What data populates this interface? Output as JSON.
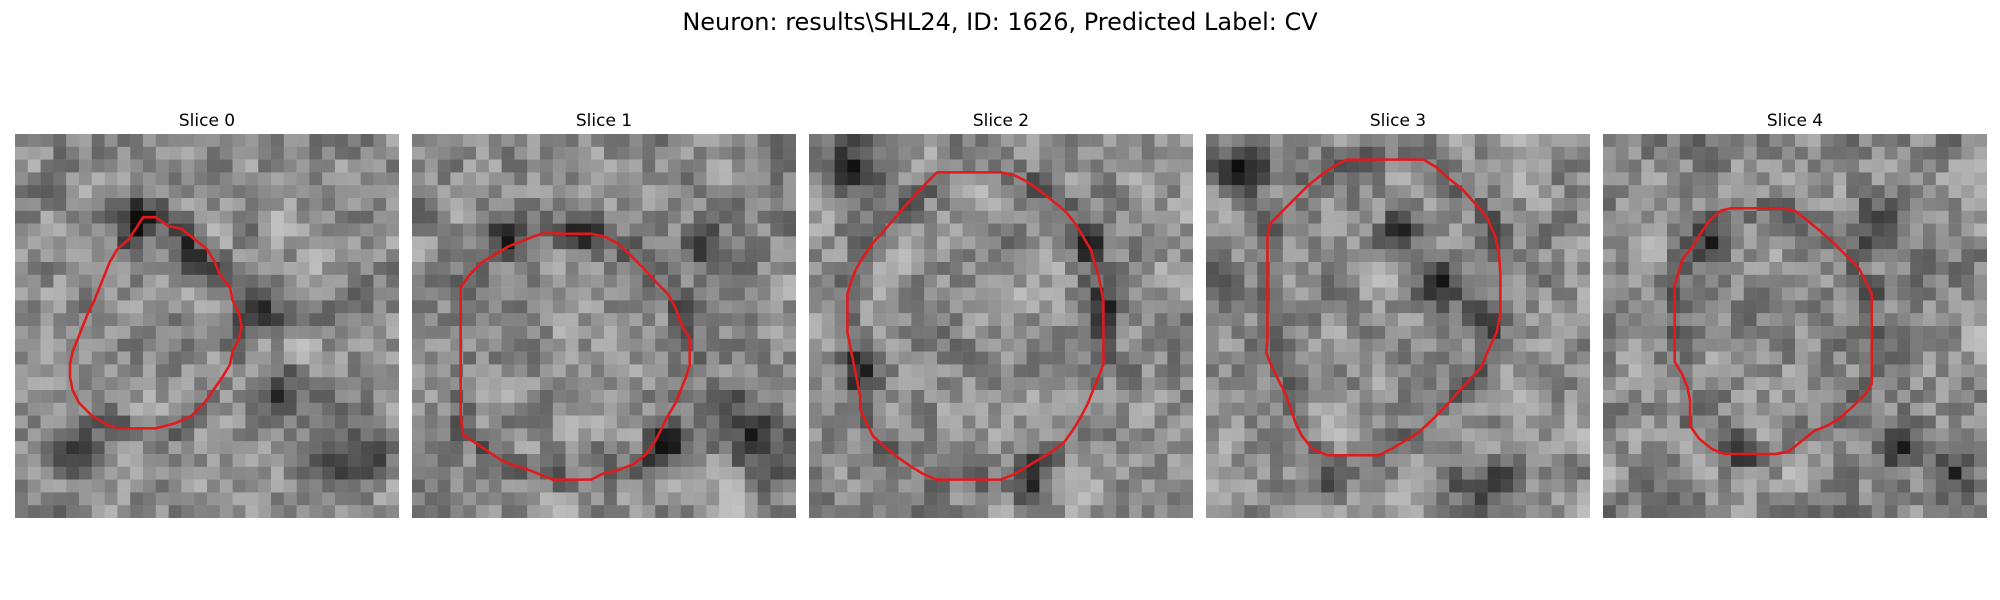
{
  "figure": {
    "title": "Neuron: results\\SHL24, ID: 1626, Predicted Label: CV"
  },
  "outline_color": "#e31a1c",
  "panels": [
    {
      "title": "Slice 0",
      "seed": 11,
      "contour": [
        [
          10,
          6.5
        ],
        [
          11,
          6.5
        ],
        [
          12,
          7.2
        ],
        [
          13,
          7.4
        ],
        [
          14,
          8.2
        ],
        [
          15,
          9
        ],
        [
          15.6,
          10
        ],
        [
          16,
          11
        ],
        [
          16.8,
          12
        ],
        [
          17,
          13
        ],
        [
          17.5,
          14
        ],
        [
          17.7,
          15
        ],
        [
          17.5,
          16
        ],
        [
          17,
          17
        ],
        [
          16.8,
          18
        ],
        [
          16.2,
          19
        ],
        [
          15.5,
          20
        ],
        [
          14.8,
          21
        ],
        [
          13.8,
          22
        ],
        [
          12.5,
          22.6
        ],
        [
          11,
          23
        ],
        [
          10,
          23
        ],
        [
          9,
          23
        ],
        [
          8,
          23
        ],
        [
          7,
          22.6
        ],
        [
          6,
          22
        ],
        [
          5,
          21
        ],
        [
          4.5,
          20
        ],
        [
          4.3,
          19
        ],
        [
          4.3,
          18
        ],
        [
          4.5,
          17
        ],
        [
          4.9,
          16
        ],
        [
          5.3,
          15
        ],
        [
          5.7,
          14
        ],
        [
          6.2,
          13
        ],
        [
          6.6,
          12
        ],
        [
          7,
          11
        ],
        [
          7.4,
          10
        ],
        [
          8,
          9
        ],
        [
          8.9,
          8.2
        ],
        [
          9.5,
          7.3
        ]
      ],
      "dark": [
        [
          9,
          6,
          3
        ],
        [
          13,
          9,
          2.5
        ],
        [
          19,
          13,
          3
        ],
        [
          20,
          20,
          3.5
        ],
        [
          26,
          24,
          4
        ],
        [
          4,
          24,
          3
        ]
      ]
    },
    {
      "title": "Slice 1",
      "seed": 23,
      "contour": [
        [
          12,
          7.8
        ],
        [
          13,
          7.8
        ],
        [
          14,
          7.8
        ],
        [
          15,
          8
        ],
        [
          16,
          8.5
        ],
        [
          17,
          9.4
        ],
        [
          18,
          10.4
        ],
        [
          19,
          11.5
        ],
        [
          20,
          12.5
        ],
        [
          20.6,
          13.6
        ],
        [
          21,
          14.8
        ],
        [
          21.7,
          16
        ],
        [
          21.7,
          17
        ],
        [
          21.7,
          18
        ],
        [
          21.4,
          19
        ],
        [
          21,
          20
        ],
        [
          20.6,
          21
        ],
        [
          20,
          22
        ],
        [
          19.5,
          23
        ],
        [
          19,
          24
        ],
        [
          18.3,
          25
        ],
        [
          17.3,
          25.8
        ],
        [
          16,
          26.3
        ],
        [
          15,
          26.5
        ],
        [
          14,
          27
        ],
        [
          13,
          27
        ],
        [
          12,
          27
        ],
        [
          11,
          27
        ],
        [
          10,
          26.6
        ],
        [
          9,
          26.2
        ],
        [
          8,
          25.9
        ],
        [
          7,
          25.5
        ],
        [
          5.5,
          24.5
        ],
        [
          4,
          23.5
        ],
        [
          3.8,
          22
        ],
        [
          3.8,
          21
        ],
        [
          3.8,
          20
        ],
        [
          3.8,
          19
        ],
        [
          3.8,
          18
        ],
        [
          3.8,
          17
        ],
        [
          3.8,
          16
        ],
        [
          3.8,
          15
        ],
        [
          3.8,
          14
        ],
        [
          3.8,
          13
        ],
        [
          3.8,
          12
        ],
        [
          4.5,
          11
        ],
        [
          5.5,
          10
        ],
        [
          6.5,
          9.4
        ],
        [
          7.5,
          8.8
        ],
        [
          8.5,
          8.4
        ],
        [
          9.5,
          8
        ],
        [
          10.5,
          7.7
        ]
      ],
      "dark": [
        [
          6,
          7,
          3
        ],
        [
          13,
          7,
          2.5
        ],
        [
          20,
          24,
          3
        ],
        [
          25,
          22,
          4
        ],
        [
          28,
          25,
          3.5
        ],
        [
          23,
          9,
          3
        ]
      ]
    },
    {
      "title": "Slice 2",
      "seed": 37,
      "contour": [
        [
          10,
          3
        ],
        [
          11,
          3
        ],
        [
          12,
          3
        ],
        [
          13,
          3
        ],
        [
          14,
          3
        ],
        [
          15,
          3
        ],
        [
          16,
          3.2
        ],
        [
          17,
          3.7
        ],
        [
          18,
          4.4
        ],
        [
          19,
          5.2
        ],
        [
          20,
          6
        ],
        [
          20.8,
          7
        ],
        [
          21.4,
          8
        ],
        [
          22,
          9
        ],
        [
          22.3,
          10
        ],
        [
          22.6,
          11
        ],
        [
          22.8,
          12
        ],
        [
          23,
          13
        ],
        [
          23,
          14
        ],
        [
          23,
          15
        ],
        [
          23,
          16
        ],
        [
          23,
          17
        ],
        [
          23,
          18
        ],
        [
          22.6,
          19
        ],
        [
          22.2,
          20
        ],
        [
          21.8,
          21
        ],
        [
          21.3,
          22
        ],
        [
          20.7,
          23
        ],
        [
          20,
          24
        ],
        [
          19,
          24.8
        ],
        [
          18,
          25.4
        ],
        [
          17,
          26
        ],
        [
          16,
          26.6
        ],
        [
          15,
          27
        ],
        [
          14,
          27
        ],
        [
          13,
          27
        ],
        [
          12,
          27
        ],
        [
          11,
          27
        ],
        [
          10,
          27
        ],
        [
          9,
          26.6
        ],
        [
          8,
          26
        ],
        [
          7,
          25.3
        ],
        [
          6,
          24.5
        ],
        [
          5,
          23.6
        ],
        [
          4.5,
          22.6
        ],
        [
          4,
          21.5
        ],
        [
          4,
          20.5
        ],
        [
          3.8,
          19.5
        ],
        [
          3.6,
          18.5
        ],
        [
          3.4,
          17.5
        ],
        [
          3.2,
          16.5
        ],
        [
          3,
          15.5
        ],
        [
          3,
          14.5
        ],
        [
          3,
          13.5
        ],
        [
          3,
          12.5
        ],
        [
          3.3,
          11.5
        ],
        [
          3.7,
          10.5
        ],
        [
          4.3,
          9.5
        ],
        [
          5,
          8.5
        ],
        [
          6,
          7.4
        ],
        [
          7,
          6.2
        ],
        [
          8,
          5.1
        ],
        [
          9,
          4
        ]
      ],
      "dark": [
        [
          3,
          2,
          3
        ],
        [
          22,
          13,
          2.5
        ],
        [
          4,
          18,
          2.5
        ],
        [
          17,
          27,
          3
        ],
        [
          21,
          8,
          2
        ]
      ]
    },
    {
      "title": "Slice 3",
      "seed": 51,
      "contour": [
        [
          11,
          2
        ],
        [
          12,
          2
        ],
        [
          13,
          2
        ],
        [
          14,
          2
        ],
        [
          15,
          2
        ],
        [
          16,
          2
        ],
        [
          17,
          2
        ],
        [
          18,
          2.6
        ],
        [
          19,
          3.5
        ],
        [
          20,
          4.3
        ],
        [
          21,
          5.4
        ],
        [
          22,
          6.6
        ],
        [
          22.6,
          8
        ],
        [
          22.9,
          9.5
        ],
        [
          23,
          11
        ],
        [
          23,
          12.5
        ],
        [
          23,
          14
        ],
        [
          22.7,
          15.5
        ],
        [
          22,
          17
        ],
        [
          21.5,
          18.2
        ],
        [
          20.5,
          19.3
        ],
        [
          19.5,
          20.4
        ],
        [
          18.5,
          21.5
        ],
        [
          17.5,
          22.5
        ],
        [
          16.5,
          23.4
        ],
        [
          15.5,
          24
        ],
        [
          14.5,
          24.6
        ],
        [
          13.5,
          25.1
        ],
        [
          12.5,
          25.1
        ],
        [
          11,
          25.1
        ],
        [
          9.5,
          25.1
        ],
        [
          8.3,
          24.6
        ],
        [
          7.5,
          23.6
        ],
        [
          7,
          22.6
        ],
        [
          6.6,
          21.4
        ],
        [
          6.2,
          20.3
        ],
        [
          5.7,
          19.3
        ],
        [
          5.2,
          18.3
        ],
        [
          4.7,
          17.1
        ],
        [
          4.8,
          16
        ],
        [
          4.8,
          15
        ],
        [
          4.8,
          14
        ],
        [
          4.8,
          13
        ],
        [
          4.8,
          12
        ],
        [
          4.8,
          11
        ],
        [
          4.8,
          10
        ],
        [
          4.8,
          9
        ],
        [
          4.8,
          8
        ],
        [
          5,
          7
        ],
        [
          6,
          6
        ],
        [
          7,
          5
        ],
        [
          8,
          4
        ],
        [
          9,
          3.2
        ],
        [
          10,
          2.5
        ]
      ],
      "dark": [
        [
          2,
          2,
          3.5
        ],
        [
          15,
          7,
          2.5
        ],
        [
          18,
          11,
          3
        ],
        [
          21,
          14,
          2.5
        ],
        [
          21,
          27,
          3.5
        ],
        [
          9,
          27,
          2.5
        ]
      ]
    },
    {
      "title": "Slice 4",
      "seed": 67,
      "contour": [
        [
          10,
          5.8
        ],
        [
          11,
          5.8
        ],
        [
          12,
          5.8
        ],
        [
          13,
          5.8
        ],
        [
          14,
          5.8
        ],
        [
          15,
          6
        ],
        [
          16,
          6.8
        ],
        [
          17,
          7.6
        ],
        [
          18,
          8.5
        ],
        [
          19,
          9.5
        ],
        [
          20,
          10.5
        ],
        [
          20.5,
          11.5
        ],
        [
          21,
          12.5
        ],
        [
          21,
          13.5
        ],
        [
          21,
          14.5
        ],
        [
          21,
          15.5
        ],
        [
          21,
          16.5
        ],
        [
          21,
          17.5
        ],
        [
          21,
          18.5
        ],
        [
          21,
          19.5
        ],
        [
          20.5,
          20.3
        ],
        [
          19.5,
          21.3
        ],
        [
          18.5,
          22.2
        ],
        [
          17.5,
          22.8
        ],
        [
          16.5,
          23.2
        ],
        [
          15.5,
          24
        ],
        [
          14.5,
          24.8
        ],
        [
          13.5,
          25
        ],
        [
          12.5,
          25
        ],
        [
          11.5,
          25
        ],
        [
          10.5,
          25
        ],
        [
          9.5,
          25
        ],
        [
          8.5,
          24.6
        ],
        [
          7.5,
          23.8
        ],
        [
          6.8,
          22.8
        ],
        [
          6.8,
          21.8
        ],
        [
          6.8,
          20.8
        ],
        [
          6.6,
          19.8
        ],
        [
          6.2,
          18.8
        ],
        [
          5.6,
          17.8
        ],
        [
          5.6,
          16.8
        ],
        [
          5.6,
          15.8
        ],
        [
          5.6,
          14.8
        ],
        [
          5.6,
          13.8
        ],
        [
          5.6,
          12.8
        ],
        [
          5.6,
          11.8
        ],
        [
          5.9,
          10.8
        ],
        [
          6.2,
          9.8
        ],
        [
          7,
          8.8
        ],
        [
          7.6,
          7.8
        ],
        [
          8.3,
          6.8
        ],
        [
          9.2,
          6
        ]
      ],
      "dark": [
        [
          21,
          7,
          3
        ],
        [
          23,
          24,
          3.5
        ],
        [
          27,
          26,
          3
        ],
        [
          8,
          8,
          2.5
        ],
        [
          10,
          24,
          2.5
        ]
      ]
    }
  ]
}
